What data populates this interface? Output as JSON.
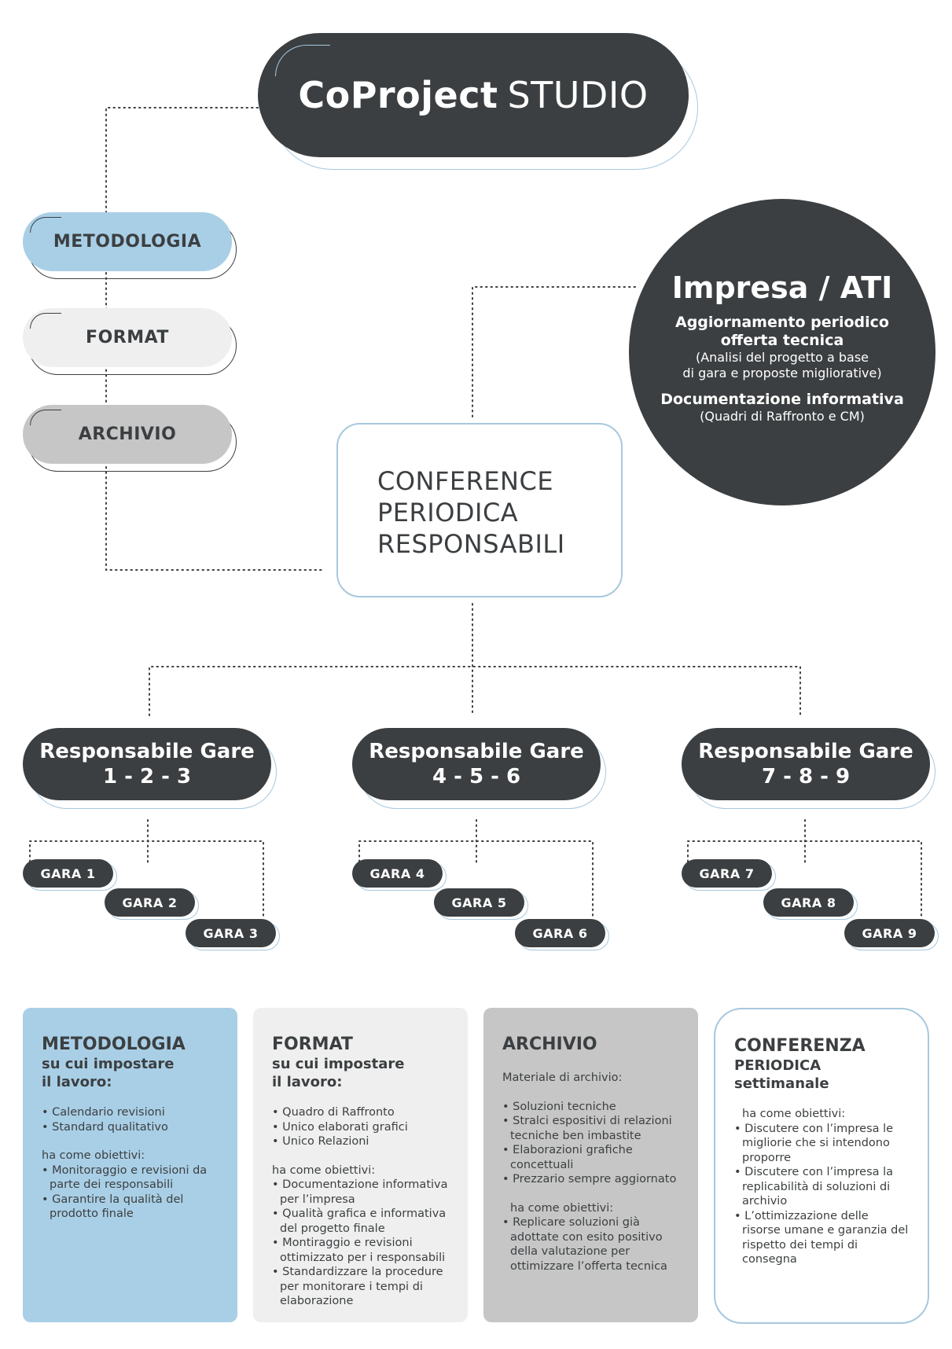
{
  "title": {
    "bold": "CoProject",
    "light": "STUDIO"
  },
  "side_pills": [
    "METODOLOGIA",
    "FORMAT",
    "ARCHIVIO"
  ],
  "conference": [
    "CONFERENCE",
    "PERIODICA",
    "RESPONSABILI"
  ],
  "impresa": {
    "title": "Impresa / ATI",
    "item1_bold": [
      "Aggiornamento periodico",
      "offerta tecnica"
    ],
    "item1_light": [
      "(Analisi del progetto a base",
      "di gara e proposte migliorative)"
    ],
    "item2_bold": "Documentazione informativa",
    "item2_light": "(Quadri di Raffronto e CM)"
  },
  "responsabili": [
    {
      "label": "Responsabile Gare",
      "range": "1 - 2 - 3",
      "gare": [
        "GARA 1",
        "GARA 2",
        "GARA 3"
      ]
    },
    {
      "label": "Responsabile Gare",
      "range": "4 - 5 - 6",
      "gare": [
        "GARA 4",
        "GARA 5",
        "GARA 6"
      ]
    },
    {
      "label": "Responsabile Gare",
      "range": "7 - 8 - 9",
      "gare": [
        "GARA 7",
        "GARA 8",
        "GARA 9"
      ]
    }
  ],
  "cards": {
    "metodologia": {
      "title": "METODOLOGIA",
      "subtitle": [
        "su cui impostare",
        "il lavoro:"
      ],
      "items": [
        "Calendario revisioni",
        "Standard qualitativo"
      ],
      "goals_label": "ha come obiettivi:",
      "goals": [
        "Monitoraggio e revisioni da parte dei responsabili",
        "Garantire la qualità del prodotto finale"
      ]
    },
    "format": {
      "title": "FORMAT",
      "subtitle": [
        "su cui impostare",
        "il lavoro:"
      ],
      "items": [
        "Quadro di Raffronto",
        "Unico elaborati grafici",
        "Unico Relazioni"
      ],
      "goals_label": "ha come obiettivi:",
      "goals": [
        "Documentazione informativa per l’impresa",
        "Qualità grafica e informativa del progetto finale",
        "Montiraggio e revisioni ottimizzato per i responsabili",
        "Standardizzare la procedure per monitorare i tempi di elaborazione"
      ]
    },
    "archivio": {
      "title": "ARCHIVIO",
      "intro": "Materiale di archivio:",
      "items": [
        "Soluzioni tecniche",
        "Stralci espositivi di relazioni tecniche ben imbastite",
        "Elaborazioni grafiche concettuali",
        "Prezzario sempre aggiornato"
      ],
      "goals_label": "ha come obiettivi:",
      "goals": [
        "Replicare soluzioni già adottate con esito positivo della valutazione per ottimizzare l’offerta tecnica"
      ]
    },
    "conferenza": {
      "title": "CONFERENZA",
      "subtitle": [
        "PERIODICA",
        "settimanale"
      ],
      "goals_label": "ha come obiettivi:",
      "goals": [
        "Discutere con l’impresa le migliorie che si intendono proporre",
        "Discutere con l’impresa la replicabilità di soluzioni di archivio",
        "L’ottimizzazione delle risorse umane e garanzia del rispetto dei tempi di consegna"
      ]
    }
  },
  "colors": {
    "dark": "#3c3f41",
    "blue": "#a9cfe6",
    "light_gray": "#efefef",
    "mid_gray": "#c6c6c6",
    "outline_blue": "#a7c8de"
  }
}
